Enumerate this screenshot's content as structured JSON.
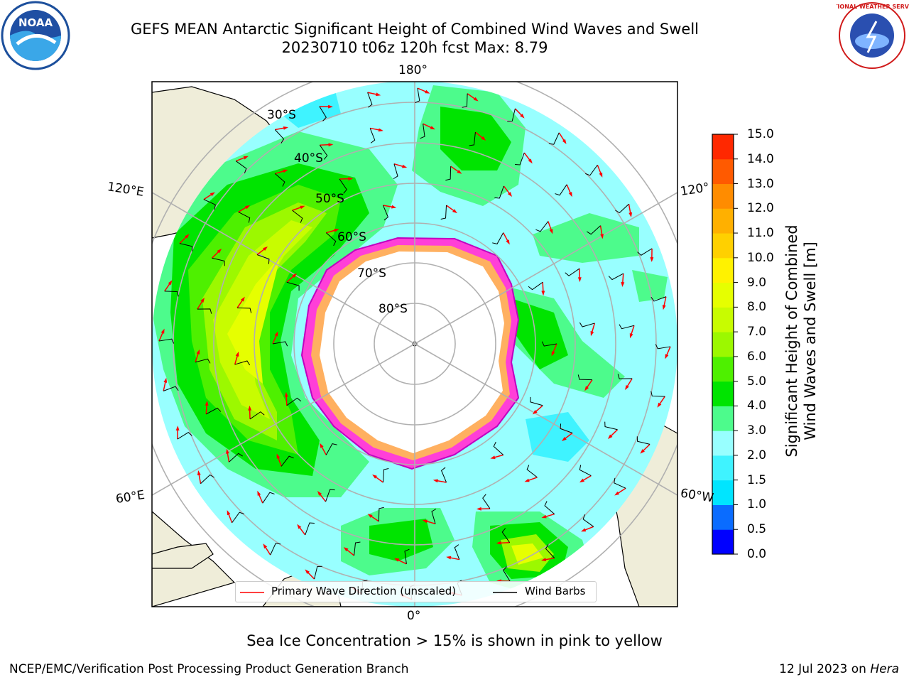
{
  "header": {
    "title_line1": "GEFS MEAN Antarctic Significant Height of Combined Wind Waves and Swell",
    "title_line2": "20230710 t06z 120h fcst   Max: 8.79"
  },
  "logos": {
    "left": {
      "name": "noaa-logo",
      "text": "NOAA"
    },
    "right": {
      "name": "nws-logo",
      "text": "NATIONAL WEATHER SERVICE"
    }
  },
  "map": {
    "lon_labels": {
      "top": "180°",
      "bottom": "0°",
      "left_upper": "120°E",
      "left_lower": "60°E",
      "right_upper": "120°",
      "right_lower": "60°W"
    },
    "lat_labels": [
      "30°S",
      "40°S",
      "50°S",
      "60°S",
      "70°S",
      "80°S"
    ],
    "legend": {
      "wave_direction": "Primary Wave Direction (unscaled)",
      "wind_barbs": "Wind Barbs"
    }
  },
  "colorbar": {
    "label_line1": "Significant Height of Combined",
    "label_line2": "Wind Waves and Swell [m]",
    "ticks": [
      "0.0",
      "0.5",
      "1.0",
      "1.5",
      "2.0",
      "3.0",
      "4.0",
      "5.0",
      "6.0",
      "7.0",
      "8.0",
      "9.0",
      "10.0",
      "11.0",
      "12.0",
      "13.0",
      "14.0",
      "15.0"
    ],
    "colors": [
      "#0000ff",
      "#0a6cff",
      "#00e5ff",
      "#3ff3ff",
      "#98ffff",
      "#4dfb8c",
      "#00e400",
      "#4ef000",
      "#9cf800",
      "#c8fc00",
      "#e6ff00",
      "#fff200",
      "#ffd000",
      "#ffb000",
      "#ff8c00",
      "#ff5a00",
      "#ff2800"
    ]
  },
  "footer": {
    "sea_ice_note": "Sea Ice Concentration > 15% is shown in pink to yellow",
    "credit": "NCEP/EMC/Verification Post Processing Product Generation Branch",
    "date": "12 Jul 2023 on ",
    "host": "Hera"
  }
}
